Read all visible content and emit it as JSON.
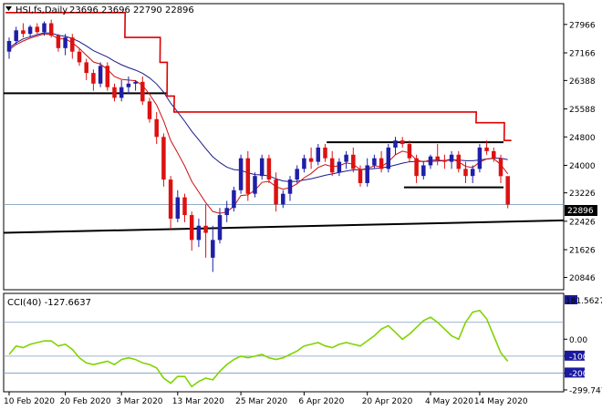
{
  "chart_data": {
    "type": "candlestick",
    "symbol_header": "HSI,fs,Daily",
    "ohlc_header": "23696 23696 22790 22896",
    "last_price_label": "22896",
    "price_axis": {
      "ylim": [
        20550,
        28500
      ],
      "ticks": [
        "27966",
        "27166",
        "26388",
        "25588",
        "24800",
        "24000",
        "23226",
        "22426",
        "21626",
        "20846"
      ]
    },
    "x_axis_labels": [
      "10 Feb 2020",
      "20 Feb 2020",
      "3 Mar 2020",
      "13 Mar 2020",
      "25 Mar 2020",
      "6 Apr 2020",
      "20 Apr 2020",
      "4 May 2020",
      "14 May 2020"
    ],
    "candles": [
      [
        27200,
        27600,
        27000,
        27500
      ],
      [
        27500,
        27900,
        27400,
        27800
      ],
      [
        27800,
        28000,
        27600,
        27700
      ],
      [
        27700,
        27950,
        27600,
        27900
      ],
      [
        27900,
        28000,
        27700,
        27750
      ],
      [
        27750,
        28050,
        27650,
        28000
      ],
      [
        28000,
        28100,
        27600,
        27650
      ],
      [
        27650,
        27700,
        27200,
        27300
      ],
      [
        27300,
        27700,
        27100,
        27600
      ],
      [
        27600,
        27700,
        27000,
        27200
      ],
      [
        27200,
        27300,
        26800,
        26900
      ],
      [
        26900,
        27000,
        26400,
        26600
      ],
      [
        26600,
        26700,
        26100,
        26300
      ],
      [
        26300,
        26900,
        26200,
        26800
      ],
      [
        26800,
        26900,
        26100,
        26200
      ],
      [
        26200,
        26300,
        25800,
        25900
      ],
      [
        25900,
        26400,
        25800,
        26200
      ],
      [
        26200,
        26500,
        26000,
        26300
      ],
      [
        26300,
        26400,
        26100,
        26350
      ],
      [
        26350,
        26500,
        25700,
        25800
      ],
      [
        25800,
        25900,
        25200,
        25300
      ],
      [
        25300,
        25500,
        24600,
        24800
      ],
      [
        24800,
        24900,
        23400,
        23600
      ],
      [
        23600,
        23700,
        22200,
        22500
      ],
      [
        22500,
        23300,
        22400,
        23100
      ],
      [
        23100,
        23200,
        22400,
        22600
      ],
      [
        22600,
        22700,
        21600,
        21900
      ],
      [
        21900,
        22500,
        21700,
        22300
      ],
      [
        22300,
        22900,
        21400,
        22100
      ],
      [
        21400,
        22300,
        21000,
        21900
      ],
      [
        21900,
        22800,
        21800,
        22600
      ],
      [
        22600,
        23000,
        22400,
        22800
      ],
      [
        22800,
        23400,
        22700,
        23300
      ],
      [
        23300,
        24300,
        23200,
        24200
      ],
      [
        24200,
        24400,
        23000,
        23200
      ],
      [
        23200,
        23800,
        23100,
        23700
      ],
      [
        23700,
        24300,
        23600,
        24200
      ],
      [
        24200,
        24300,
        23500,
        23600
      ],
      [
        23600,
        23800,
        22700,
        22900
      ],
      [
        22900,
        23300,
        22800,
        23200
      ],
      [
        23200,
        23700,
        23000,
        23600
      ],
      [
        23600,
        24000,
        23500,
        23900
      ],
      [
        23900,
        24300,
        23800,
        24200
      ],
      [
        24200,
        24500,
        23900,
        24100
      ],
      [
        24100,
        24600,
        24000,
        24500
      ],
      [
        24500,
        24600,
        24100,
        24200
      ],
      [
        24200,
        24400,
        23700,
        23800
      ],
      [
        23800,
        24200,
        23700,
        24100
      ],
      [
        24100,
        24400,
        23900,
        24300
      ],
      [
        24300,
        24500,
        23800,
        23900
      ],
      [
        23900,
        24000,
        23400,
        23500
      ],
      [
        23500,
        24200,
        23400,
        24000
      ],
      [
        24000,
        24300,
        23900,
        24200
      ],
      [
        24200,
        24400,
        23800,
        23900
      ],
      [
        23900,
        24600,
        23800,
        24500
      ],
      [
        24500,
        24800,
        24300,
        24700
      ],
      [
        24700,
        24800,
        24500,
        24600
      ],
      [
        24600,
        24700,
        24100,
        24200
      ],
      [
        24200,
        24300,
        23500,
        23700
      ],
      [
        23700,
        24100,
        23600,
        24000
      ],
      [
        24000,
        24300,
        23900,
        24250
      ],
      [
        24250,
        24600,
        24000,
        24150
      ],
      [
        24150,
        24300,
        23900,
        24100
      ],
      [
        24100,
        24400,
        23900,
        24300
      ],
      [
        24300,
        24400,
        23800,
        23900
      ],
      [
        23900,
        24100,
        23500,
        23700
      ],
      [
        23700,
        24000,
        23500,
        23900
      ],
      [
        23900,
        24600,
        23800,
        24500
      ],
      [
        24500,
        24700,
        24300,
        24400
      ],
      [
        24400,
        24500,
        24100,
        24200
      ],
      [
        24200,
        24300,
        23500,
        23696
      ],
      [
        23696,
        23696,
        22790,
        22896
      ]
    ],
    "series": [
      {
        "name": "",
        "type": "line",
        "color": "#1a1a8c",
        "values": [
          27300,
          27450,
          27560,
          27620,
          27680,
          27730,
          27720,
          27660,
          27630,
          27570,
          27480,
          27360,
          27230,
          27140,
          27050,
          26930,
          26830,
          26750,
          26680,
          26590,
          26460,
          26290,
          26060,
          25750,
          25500,
          25240,
          24960,
          24720,
          24470,
          24240,
          24080,
          23950,
          23880,
          23860,
          23790,
          23740,
          23730,
          23700,
          23620,
          23560,
          23540,
          23550,
          23590,
          23620,
          23670,
          23720,
          23760,
          23800,
          23840,
          23870,
          23880,
          23890,
          23910,
          23930,
          23960,
          24010,
          24060,
          24100,
          24110,
          24110,
          24110,
          24120,
          24130,
          24150,
          24150,
          24130,
          24130,
          24150,
          24180,
          24200,
          24200,
          24160
        ]
      },
      {
        "name": "",
        "type": "line",
        "color": "#cc1111",
        "values": [
          27250,
          27400,
          27500,
          27580,
          27640,
          27700,
          27680,
          27560,
          27560,
          27450,
          27290,
          27100,
          26910,
          26850,
          26700,
          26500,
          26420,
          26400,
          26380,
          26250,
          26000,
          25700,
          25250,
          24700,
          24350,
          23980,
          23550,
          23250,
          22950,
          22700,
          22650,
          22690,
          22850,
          23150,
          23170,
          23300,
          23520,
          23550,
          23400,
          23330,
          23370,
          23480,
          23650,
          23770,
          23940,
          24020,
          23960,
          23990,
          24070,
          24030,
          23880,
          23910,
          23990,
          23960,
          24100,
          24300,
          24400,
          24350,
          24150,
          24100,
          24150,
          24150,
          24130,
          24180,
          24100,
          23970,
          23940,
          24090,
          24180,
          24190,
          24020,
          23760
        ]
      },
      {
        "name": "",
        "type": "line",
        "color": "#dd0000",
        "values": [
          28300,
          28300,
          28300,
          28300,
          28300,
          28300,
          28300,
          28300,
          28300,
          28300,
          28300,
          28300,
          28300,
          28300,
          28300,
          28300,
          28300,
          27600,
          27600,
          27600,
          27600,
          27600,
          26900,
          25950,
          25500,
          25500,
          25500,
          25500,
          25500,
          25500,
          25500,
          25500,
          25500,
          25500,
          25500,
          25500,
          25500,
          25500,
          25500,
          25500,
          25500,
          25500,
          25500,
          25500,
          25500,
          25500,
          25500,
          25500,
          25500,
          25500,
          25500,
          25500,
          25500,
          25500,
          25500,
          25500,
          25500,
          25500,
          25500,
          25500,
          25500,
          25500,
          25500,
          25500,
          25500,
          25500,
          25500,
          25200,
          25200,
          25200,
          25200,
          24700
        ]
      }
    ],
    "horizontal_lines": [
      {
        "price": 26030,
        "from_index": 0,
        "to_index": 22
      },
      {
        "price": 24650,
        "from_index": 46,
        "to_index": 70
      },
      {
        "price": 23380,
        "from_index": 57,
        "to_index": 70
      }
    ],
    "trend_line": {
      "from": [
        0,
        22100
      ],
      "to": [
        76,
        22450
      ]
    },
    "cci": {
      "label": "CCI(40) -127.6637",
      "ylim": [
        -300,
        260
      ],
      "ticks": [
        "0.00",
        "-100",
        "-200",
        "-299.7474"
      ],
      "top_label": "181.5627",
      "levels": [
        100,
        -100,
        -200
      ],
      "values": [
        -90,
        -40,
        -50,
        -30,
        -20,
        -10,
        -10,
        -40,
        -30,
        -60,
        -110,
        -140,
        -150,
        -140,
        -130,
        -150,
        -120,
        -110,
        -120,
        -140,
        -150,
        -170,
        -230,
        -260,
        -220,
        -220,
        -280,
        -250,
        -230,
        -240,
        -190,
        -150,
        -120,
        -100,
        -110,
        -100,
        -90,
        -110,
        -120,
        -110,
        -90,
        -70,
        -40,
        -30,
        -20,
        -40,
        -50,
        -30,
        -20,
        -30,
        -40,
        -10,
        20,
        60,
        80,
        40,
        0,
        30,
        70,
        110,
        130,
        100,
        60,
        20,
        0,
        100,
        160,
        170,
        120,
        20,
        -80,
        -130
      ]
    }
  }
}
